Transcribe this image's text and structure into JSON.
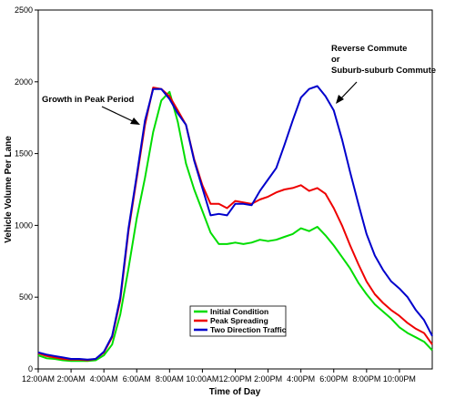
{
  "chart_data": {
    "type": "line",
    "title": "",
    "xlabel": "Time of Day",
    "ylabel": "Vehicle Volume Per Lane",
    "xlim": [
      0,
      24
    ],
    "ylim": [
      0,
      2500
    ],
    "grid": false,
    "legend_position": "bottom-center",
    "x_ticks": [
      0,
      2,
      4,
      6,
      8,
      10,
      12,
      14,
      16,
      18,
      20,
      22
    ],
    "x_tick_labels": [
      "12:00AM",
      "2:00AM",
      "4:00AM",
      "6:00AM",
      "8:00AM",
      "10:00AM",
      "12:00PM",
      "2:00PM",
      "4:00PM",
      "6:00PM",
      "8:00PM",
      "10:00PM"
    ],
    "y_ticks": [
      0,
      500,
      1000,
      1500,
      2000,
      2500
    ],
    "y_tick_labels": [
      "0",
      "500",
      "1000",
      "1500",
      "2000",
      "2500"
    ],
    "x": [
      0,
      0.5,
      1,
      1.5,
      2,
      2.5,
      3,
      3.5,
      4,
      4.5,
      5,
      5.5,
      6,
      6.5,
      7,
      7.5,
      8,
      8.5,
      9,
      9.5,
      10,
      10.5,
      11,
      11.5,
      12,
      12.5,
      13,
      13.5,
      14,
      14.5,
      15,
      15.5,
      16,
      16.5,
      17,
      17.5,
      18,
      18.5,
      19,
      19.5,
      20,
      20.5,
      21,
      21.5,
      22,
      22.5,
      23,
      23.5,
      24
    ],
    "series": [
      {
        "name": "Initial Condition",
        "color": "#00dd00",
        "values": [
          95,
          75,
          70,
          60,
          55,
          55,
          55,
          60,
          95,
          170,
          380,
          700,
          1050,
          1330,
          1650,
          1870,
          1930,
          1720,
          1430,
          1250,
          1100,
          950,
          870,
          870,
          880,
          870,
          880,
          900,
          890,
          900,
          920,
          940,
          980,
          960,
          990,
          930,
          860,
          780,
          700,
          600,
          520,
          450,
          400,
          350,
          290,
          250,
          220,
          190,
          130
        ]
      },
      {
        "name": "Peak Spreading",
        "color": "#ee0000",
        "values": [
          110,
          90,
          80,
          70,
          65,
          65,
          60,
          70,
          115,
          220,
          480,
          960,
          1330,
          1700,
          1960,
          1950,
          1900,
          1800,
          1700,
          1460,
          1280,
          1150,
          1150,
          1120,
          1170,
          1160,
          1150,
          1180,
          1200,
          1230,
          1250,
          1260,
          1280,
          1240,
          1260,
          1220,
          1120,
          1000,
          860,
          730,
          610,
          520,
          460,
          410,
          370,
          320,
          280,
          250,
          170
        ]
      },
      {
        "name": "Two Direction Traffic",
        "color": "#0000cc",
        "values": [
          115,
          100,
          90,
          80,
          70,
          70,
          65,
          70,
          120,
          230,
          500,
          980,
          1350,
          1730,
          1950,
          1950,
          1880,
          1780,
          1700,
          1450,
          1260,
          1070,
          1080,
          1070,
          1150,
          1150,
          1140,
          1240,
          1320,
          1400,
          1560,
          1730,
          1890,
          1950,
          1970,
          1900,
          1800,
          1600,
          1370,
          1150,
          940,
          790,
          690,
          610,
          560,
          500,
          410,
          340,
          230
        ]
      }
    ],
    "annotations": [
      {
        "text": "Growth in Peak Period"
      },
      {
        "text": "Reverse Commute"
      },
      {
        "text": "or"
      },
      {
        "text": "Suburb-suburb Commute"
      }
    ]
  }
}
